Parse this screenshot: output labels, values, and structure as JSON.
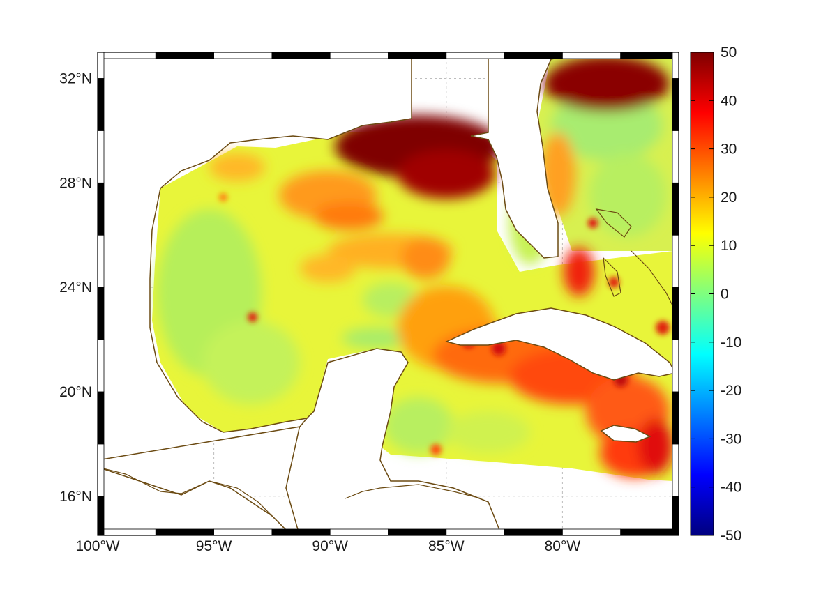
{
  "map": {
    "lon_range": [
      -100,
      -75
    ],
    "lat_range": [
      14.5,
      33
    ],
    "lon_ticks": [
      {
        "value": -100,
        "label": "100°W"
      },
      {
        "value": -95,
        "label": "95°W"
      },
      {
        "value": -90,
        "label": "90°W"
      },
      {
        "value": -85,
        "label": "85°W"
      },
      {
        "value": -80,
        "label": "80°W"
      }
    ],
    "lat_ticks": [
      {
        "value": 32,
        "label": "32°N"
      },
      {
        "value": 28,
        "label": "28°N"
      },
      {
        "value": 24,
        "label": "24°N"
      },
      {
        "value": 20,
        "label": "20°N"
      },
      {
        "value": 16,
        "label": "16°N"
      }
    ],
    "grid": true,
    "coastline_color": "#6b4a12",
    "land_color": "#ffffff"
  },
  "colorbar": {
    "range": [
      -50,
      50
    ],
    "ticks": [
      {
        "value": 50,
        "label": "50"
      },
      {
        "value": 40,
        "label": "40"
      },
      {
        "value": 30,
        "label": "30"
      },
      {
        "value": 20,
        "label": "20"
      },
      {
        "value": 10,
        "label": "10"
      },
      {
        "value": 0,
        "label": "0"
      },
      {
        "value": -10,
        "label": "-10"
      },
      {
        "value": -20,
        "label": "-20"
      },
      {
        "value": -30,
        "label": "-30"
      },
      {
        "value": -40,
        "label": "-40"
      },
      {
        "value": -50,
        "label": "-50"
      }
    ],
    "colormap": "jet",
    "colors": [
      "#00007f",
      "#0000ff",
      "#007fff",
      "#00ffff",
      "#7fff7f",
      "#ffff00",
      "#ff7f00",
      "#ff0000",
      "#7f0000"
    ]
  }
}
